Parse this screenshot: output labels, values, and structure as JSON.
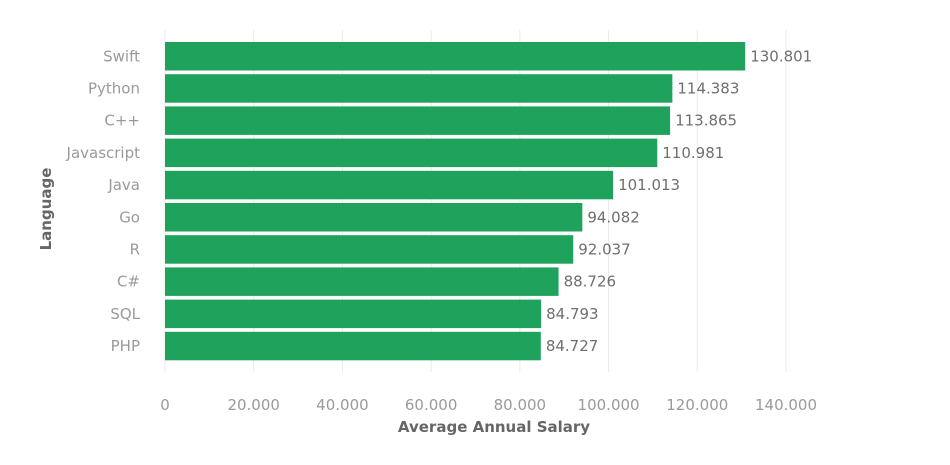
{
  "chart_data": {
    "type": "bar",
    "orientation": "horizontal",
    "categories": [
      "Swift",
      "Python",
      "C++",
      "Javascript",
      "Java",
      "Go",
      "R",
      "C#",
      "SQL",
      "PHP"
    ],
    "values": [
      130801,
      114383,
      113865,
      110981,
      101013,
      94082,
      92037,
      88726,
      84793,
      84727
    ],
    "value_labels": [
      "130.801",
      "114.383",
      "113.865",
      "110.981",
      "101.013",
      "94.082",
      "92.037",
      "88.726",
      "84.793",
      "84.727"
    ],
    "xlabel": "Average Annual Salary",
    "ylabel": "Language",
    "xlim": [
      0,
      140000
    ],
    "xticks": [
      0,
      20000,
      40000,
      60000,
      80000,
      100000,
      120000,
      140000
    ],
    "xtick_labels": [
      "0",
      "20.000",
      "40.000",
      "60.000",
      "80.000",
      "100.000",
      "120.000",
      "140.000"
    ],
    "grid": true,
    "bar_color": "#1fa35c"
  }
}
